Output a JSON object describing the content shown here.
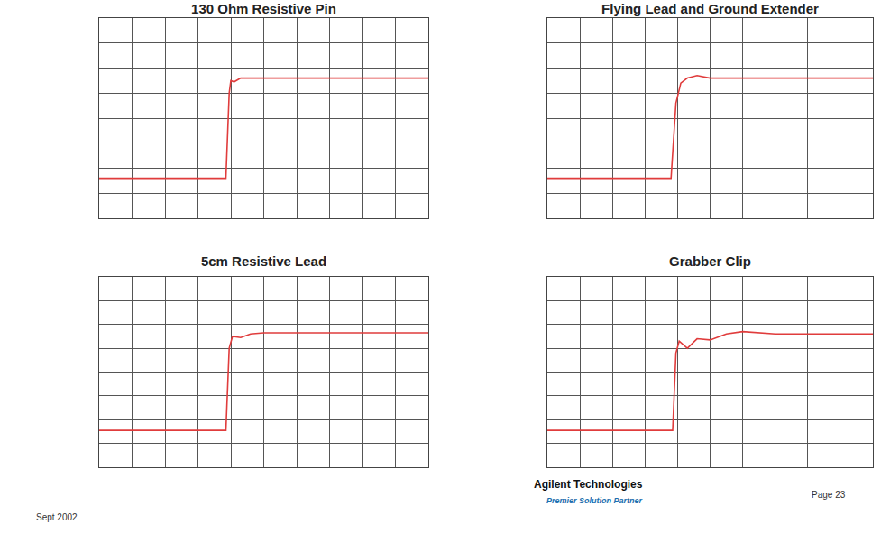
{
  "chart_data": [
    {
      "type": "line",
      "title": "130 Ohm Resistive Pin",
      "x": [
        0,
        3.85,
        3.95,
        4.0,
        4.1,
        4.3,
        4.6,
        10
      ],
      "values": [
        1.6,
        1.6,
        5.0,
        5.5,
        5.45,
        5.6,
        5.6,
        5.6
      ],
      "color": "#e03c3c",
      "xlim": [
        0,
        10
      ],
      "xticks": [
        0,
        1,
        2,
        3,
        4,
        5,
        6,
        7,
        8,
        9,
        10
      ],
      "ylim": [
        0,
        8
      ],
      "yticks": [
        0,
        1,
        2,
        3,
        4,
        5,
        6,
        7,
        8
      ],
      "grid": true,
      "tick_labels": false
    },
    {
      "type": "line",
      "title": "Flying Lead and Ground Extender",
      "x": [
        0,
        3.8,
        3.95,
        4.1,
        4.3,
        4.6,
        5.0,
        6,
        10
      ],
      "values": [
        1.6,
        1.6,
        4.6,
        5.4,
        5.6,
        5.7,
        5.6,
        5.6,
        5.6
      ],
      "color": "#e03c3c",
      "xlim": [
        0,
        10
      ],
      "xticks": [
        0,
        1,
        2,
        3,
        4,
        5,
        6,
        7,
        8,
        9,
        10
      ],
      "ylim": [
        0,
        8
      ],
      "yticks": [
        0,
        1,
        2,
        3,
        4,
        5,
        6,
        7,
        8
      ],
      "grid": true,
      "tick_labels": false
    },
    {
      "type": "line",
      "title": "5cm Resistive Lead",
      "x": [
        0,
        3.85,
        3.95,
        4.05,
        4.3,
        4.6,
        5.0,
        10
      ],
      "values": [
        1.55,
        1.55,
        5.0,
        5.5,
        5.45,
        5.6,
        5.65,
        5.65
      ],
      "color": "#e03c3c",
      "xlim": [
        0,
        10
      ],
      "xticks": [
        0,
        1,
        2,
        3,
        4,
        5,
        6,
        7,
        8,
        9,
        10
      ],
      "ylim": [
        0,
        8
      ],
      "yticks": [
        0,
        1,
        2,
        3,
        4,
        5,
        6,
        7,
        8
      ],
      "grid": true,
      "tick_labels": false
    },
    {
      "type": "line",
      "title": "Grabber Clip",
      "x": [
        0,
        3.85,
        3.95,
        4.05,
        4.3,
        4.6,
        5.0,
        5.5,
        6.0,
        7.0,
        10
      ],
      "values": [
        1.55,
        1.55,
        4.8,
        5.3,
        5.0,
        5.4,
        5.35,
        5.6,
        5.7,
        5.6,
        5.6
      ],
      "color": "#e03c3c",
      "xlim": [
        0,
        10
      ],
      "xticks": [
        0,
        1,
        2,
        3,
        4,
        5,
        6,
        7,
        8,
        9,
        10
      ],
      "ylim": [
        0,
        8
      ],
      "yticks": [
        0,
        1,
        2,
        3,
        4,
        5,
        6,
        7,
        8
      ],
      "grid": true,
      "tick_labels": false
    }
  ],
  "footer": {
    "date": "Sept 2002",
    "company": "Agilent Technologies",
    "tagline": "Premier Solution Partner",
    "page": "Page 23"
  }
}
